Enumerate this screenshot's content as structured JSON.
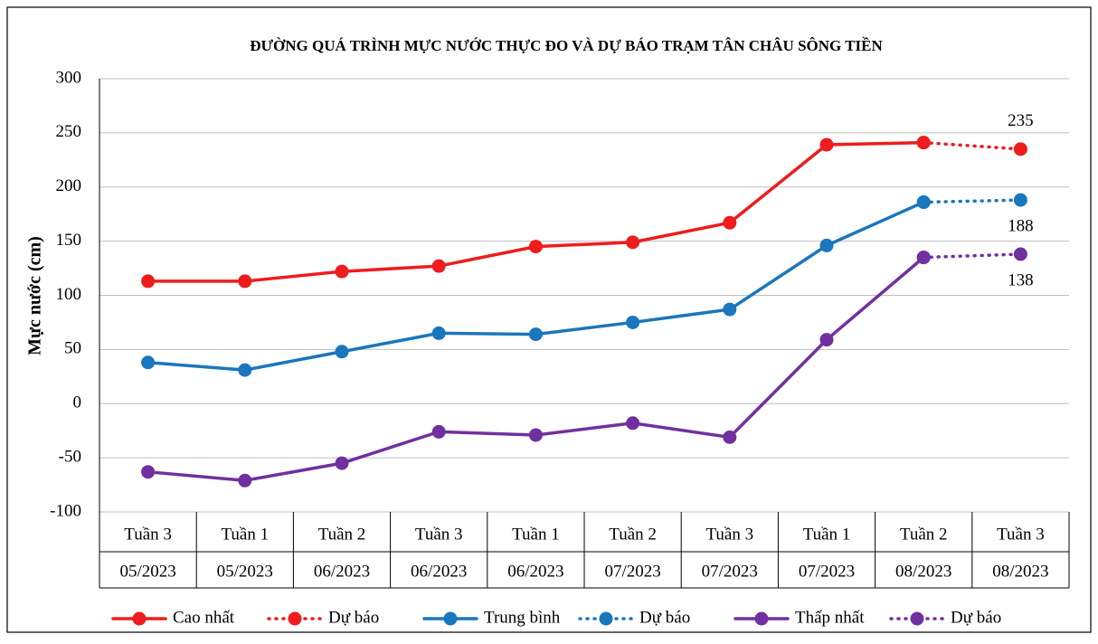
{
  "chart_data": {
    "type": "line",
    "title": "ĐƯỜNG QUÁ TRÌNH MỰC NƯỚC THỰC ĐO VÀ DỰ BÁO TRẠM TÂN CHÂU SÔNG TIỀN",
    "y_label": "Mực nước (cm)",
    "categories": [
      [
        "Tuần 3",
        "05/2023"
      ],
      [
        "Tuần 1",
        "05/2023"
      ],
      [
        "Tuần 2",
        "06/2023"
      ],
      [
        "Tuần 3",
        "06/2023"
      ],
      [
        "Tuần 1",
        "06/2023"
      ],
      [
        "Tuần 2",
        "07/2023"
      ],
      [
        "Tuần 3",
        "07/2023"
      ],
      [
        "Tuần 1",
        "07/2023"
      ],
      [
        "Tuần 2",
        "08/2023"
      ],
      [
        "Tuần 3",
        "08/2023"
      ]
    ],
    "series": [
      {
        "name": "Cao nhất",
        "color": "#ee1c1c",
        "dashed": false,
        "values": [
          113,
          113,
          122,
          127,
          145,
          149,
          167,
          239,
          241,
          null
        ]
      },
      {
        "name": "Dự báo",
        "color": "#ee1c1c",
        "dashed": true,
        "data_label_last": true,
        "values": [
          null,
          null,
          null,
          null,
          null,
          null,
          null,
          null,
          241,
          235
        ]
      },
      {
        "name": "Trung bình",
        "color": "#1a76bd",
        "dashed": false,
        "values": [
          38,
          31,
          48,
          65,
          64,
          75,
          87,
          146,
          186,
          null
        ]
      },
      {
        "name": "Dự báo",
        "color": "#1a76bd",
        "dashed": true,
        "data_label_last": true,
        "values": [
          null,
          null,
          null,
          null,
          null,
          null,
          null,
          null,
          186,
          188
        ]
      },
      {
        "name": "Thấp nhất",
        "color": "#7030a0",
        "dashed": false,
        "values": [
          -63,
          -71,
          -55,
          -26,
          -29,
          -18,
          -31,
          59,
          135,
          null
        ]
      },
      {
        "name": "Dự báo",
        "color": "#7030a0",
        "dashed": true,
        "data_label_last": true,
        "values": [
          null,
          null,
          null,
          null,
          null,
          null,
          null,
          null,
          135,
          138
        ]
      }
    ],
    "ylim": [
      -100,
      300
    ],
    "yticks": [
      -100,
      -50,
      0,
      50,
      100,
      150,
      200,
      250,
      300
    ],
    "grid": true,
    "legend": "bottom"
  }
}
